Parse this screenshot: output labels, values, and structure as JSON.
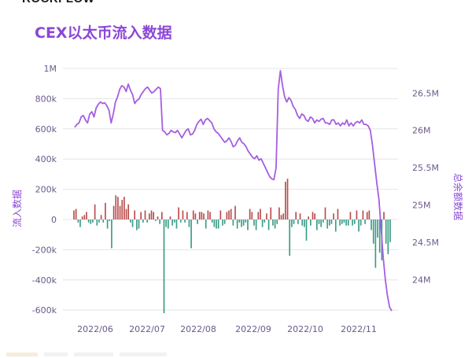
{
  "brand": {
    "logo_text": "ROCKFLOW"
  },
  "title": "CEX以太币流入数据",
  "colors": {
    "title": "#8b47d6",
    "line": "#a65ee0",
    "bar_positive": "#b94b4b",
    "bar_negative": "#3a9c86",
    "grid": "#e4e4e4",
    "axis_text": "#6a5a8a",
    "axis_label": "#8b47d6"
  },
  "chart_data": {
    "type": "bar+line",
    "x_ticks": [
      "2022/06",
      "2022/07",
      "2022/08",
      "2022/09",
      "2022/10",
      "2022/11"
    ],
    "left_axis": {
      "label": "流入数据",
      "ticks": [
        "1M",
        "800k",
        "600k",
        "400k",
        "200k",
        "0",
        "-200k",
        "-400k",
        "-600k"
      ],
      "range": [
        -620000,
        1000000
      ]
    },
    "right_axis": {
      "label": "总余额数据",
      "ticks": [
        "26.5M",
        "26M",
        "25.5M",
        "25M",
        "24.5M",
        "24M"
      ],
      "range": [
        23.55,
        26.83
      ]
    },
    "grid": true,
    "series": [
      {
        "kind": "bar",
        "axis": "left",
        "values": [
          60000,
          70000,
          -20000,
          -50000,
          20000,
          30000,
          50000,
          -20000,
          -30000,
          -20000,
          100000,
          -40000,
          -20000,
          30000,
          -20000,
          110000,
          -60000,
          -10000,
          -190000,
          90000,
          160000,
          150000,
          90000,
          130000,
          150000,
          70000,
          100000,
          -20000,
          -50000,
          60000,
          -70000,
          -60000,
          50000,
          -20000,
          60000,
          -20000,
          40000,
          60000,
          50000,
          -10000,
          20000,
          -30000,
          50000,
          -620000,
          -50000,
          -60000,
          20000,
          -40000,
          -20000,
          -60000,
          80000,
          -20000,
          60000,
          -20000,
          50000,
          -50000,
          -190000,
          60000,
          40000,
          -30000,
          50000,
          50000,
          40000,
          -60000,
          60000,
          50000,
          -20000,
          -50000,
          -60000,
          -60000,
          60000,
          -40000,
          -30000,
          50000,
          60000,
          70000,
          -40000,
          90000,
          -60000,
          -20000,
          -50000,
          -40000,
          -20000,
          -70000,
          70000,
          50000,
          -40000,
          -70000,
          50000,
          70000,
          -50000,
          -20000,
          40000,
          -70000,
          80000,
          -40000,
          -60000,
          -30000,
          80000,
          30000,
          40000,
          250000,
          270000,
          -240000,
          -50000,
          -30000,
          50000,
          -30000,
          40000,
          -40000,
          -50000,
          -140000,
          20000,
          -40000,
          50000,
          40000,
          -70000,
          -30000,
          -50000,
          -20000,
          80000,
          -60000,
          -40000,
          -30000,
          40000,
          -80000,
          70000,
          -40000,
          -30000,
          -20000,
          -40000,
          -40000,
          50000,
          -40000,
          -30000,
          60000,
          -80000,
          -40000,
          60000,
          -30000,
          50000,
          60000,
          -70000,
          -160000,
          -320000,
          -120000,
          -220000,
          -270000,
          50000,
          -160000,
          -230000,
          -150000
        ]
      },
      {
        "kind": "line",
        "axis": "right",
        "values": [
          26.04,
          26.08,
          26.1,
          26.18,
          26.2,
          26.14,
          26.1,
          26.22,
          26.25,
          26.18,
          26.3,
          26.35,
          26.38,
          26.36,
          26.37,
          26.33,
          26.27,
          26.1,
          26.22,
          26.38,
          26.45,
          26.55,
          26.6,
          26.58,
          26.52,
          26.62,
          26.54,
          26.48,
          26.36,
          26.4,
          26.42,
          26.48,
          26.52,
          26.56,
          26.58,
          26.54,
          26.5,
          26.52,
          26.55,
          26.58,
          26.56,
          26.0,
          25.98,
          25.94,
          25.96,
          26.0,
          25.98,
          25.97,
          26.0,
          25.95,
          25.9,
          25.95,
          26.0,
          26.02,
          25.94,
          25.95,
          26.0,
          26.08,
          26.12,
          26.15,
          26.08,
          26.14,
          26.16,
          26.13,
          26.1,
          26.02,
          25.98,
          25.96,
          25.92,
          25.88,
          25.84,
          25.86,
          25.9,
          25.85,
          25.78,
          25.8,
          25.86,
          25.9,
          25.84,
          25.82,
          25.78,
          25.72,
          25.68,
          25.64,
          25.62,
          25.66,
          25.6,
          25.62,
          25.56,
          25.5,
          25.44,
          25.38,
          25.35,
          25.34,
          25.5,
          26.55,
          26.8,
          26.6,
          26.45,
          26.38,
          26.44,
          26.4,
          26.32,
          26.28,
          26.2,
          26.16,
          26.22,
          26.2,
          26.14,
          26.12,
          26.18,
          26.16,
          26.1,
          26.14,
          26.12,
          26.15,
          26.16,
          26.1,
          26.1,
          26.08,
          26.14,
          26.14,
          26.08,
          26.1,
          26.06,
          26.1,
          26.08,
          26.14,
          26.06,
          26.1,
          26.06,
          26.1,
          26.12,
          26.1,
          26.14,
          26.08,
          26.08,
          26.06,
          26.0,
          25.8,
          25.55,
          25.3,
          25.08,
          24.7,
          24.3,
          24.0,
          23.78,
          23.63,
          23.58
        ]
      }
    ]
  }
}
